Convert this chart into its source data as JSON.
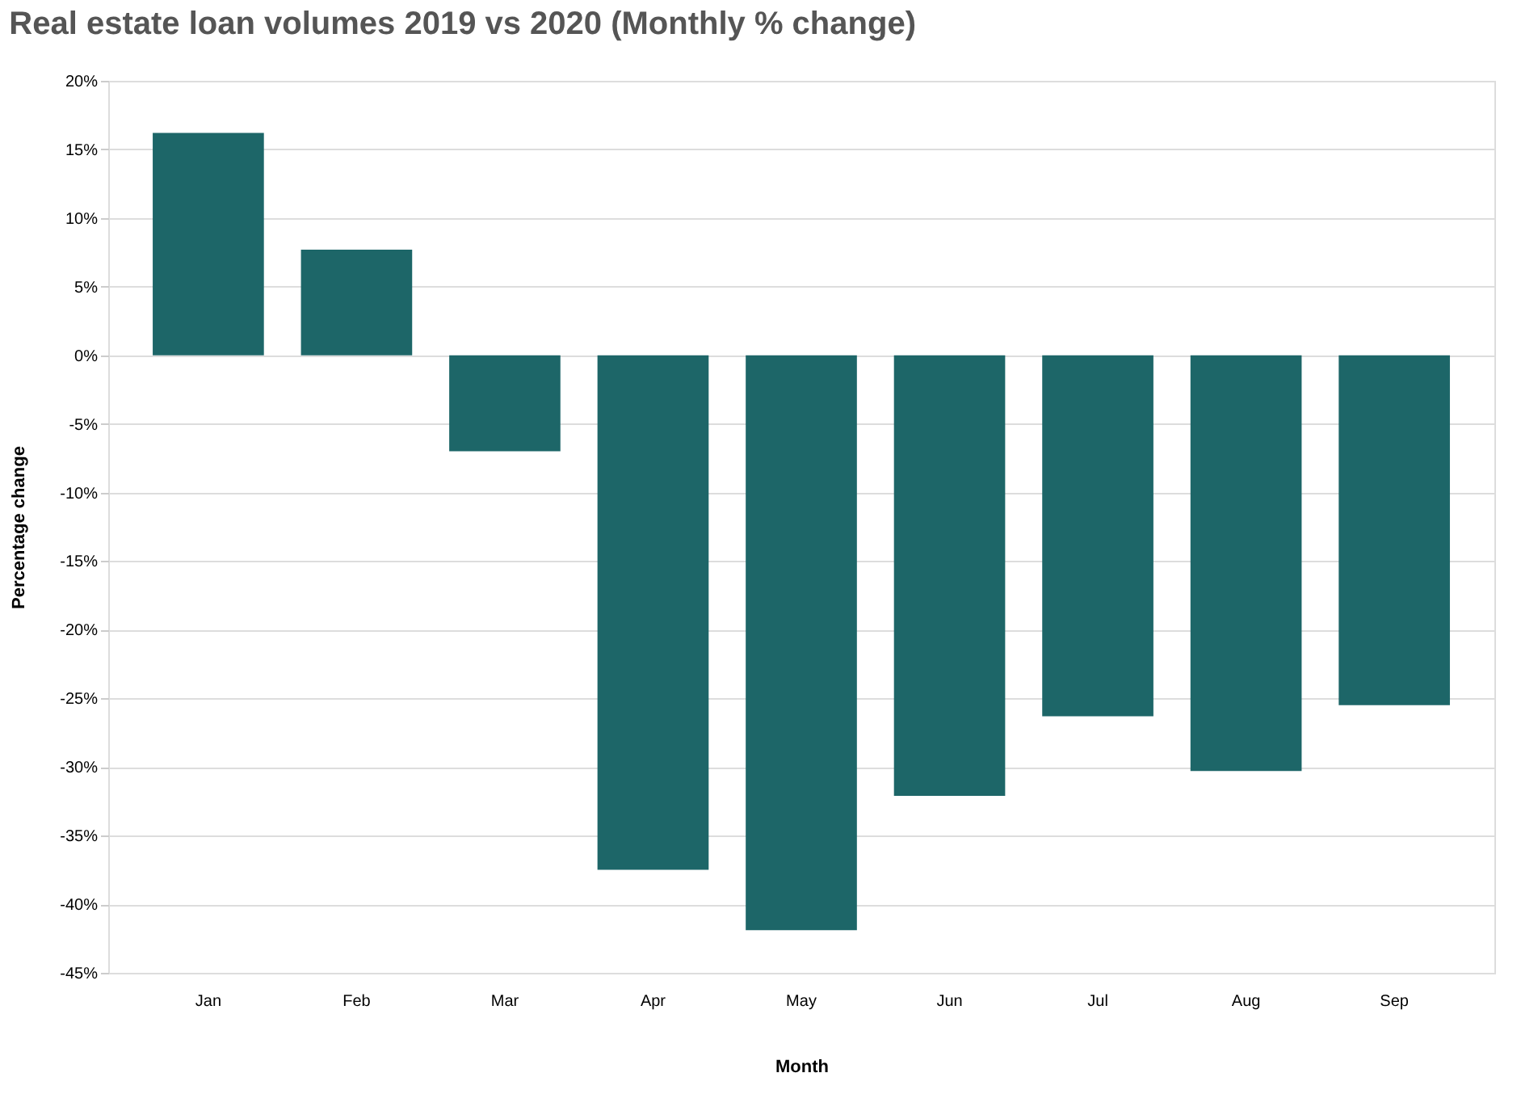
{
  "chart_data": {
    "type": "bar",
    "title": "Real estate loan volumes 2019 vs 2020 (Monthly % change)",
    "xlabel": "Month",
    "ylabel": "Percentage change",
    "categories": [
      "Jan",
      "Feb",
      "Mar",
      "Apr",
      "May",
      "Jun",
      "Jul",
      "Aug",
      "Sep"
    ],
    "values": [
      16.2,
      7.7,
      -7.0,
      -37.5,
      -41.9,
      -32.1,
      -26.3,
      -30.3,
      -25.5
    ],
    "color": "#1d6668",
    "ylim": [
      -45,
      20
    ],
    "yticks": [
      {
        "value": -45,
        "label": "-45%"
      },
      {
        "value": -40,
        "label": "-40%"
      },
      {
        "value": -35,
        "label": "-35%"
      },
      {
        "value": -30,
        "label": "-30%"
      },
      {
        "value": -25,
        "label": "-25%"
      },
      {
        "value": -20,
        "label": "-20%"
      },
      {
        "value": -15,
        "label": "-15%"
      },
      {
        "value": -10,
        "label": "-10%"
      },
      {
        "value": -5,
        "label": "-5%"
      },
      {
        "value": 0,
        "label": "0%"
      },
      {
        "value": 5,
        "label": "5%"
      },
      {
        "value": 10,
        "label": "10%"
      },
      {
        "value": 15,
        "label": "15%"
      },
      {
        "value": 20,
        "label": "20%"
      }
    ],
    "grid": "y"
  }
}
